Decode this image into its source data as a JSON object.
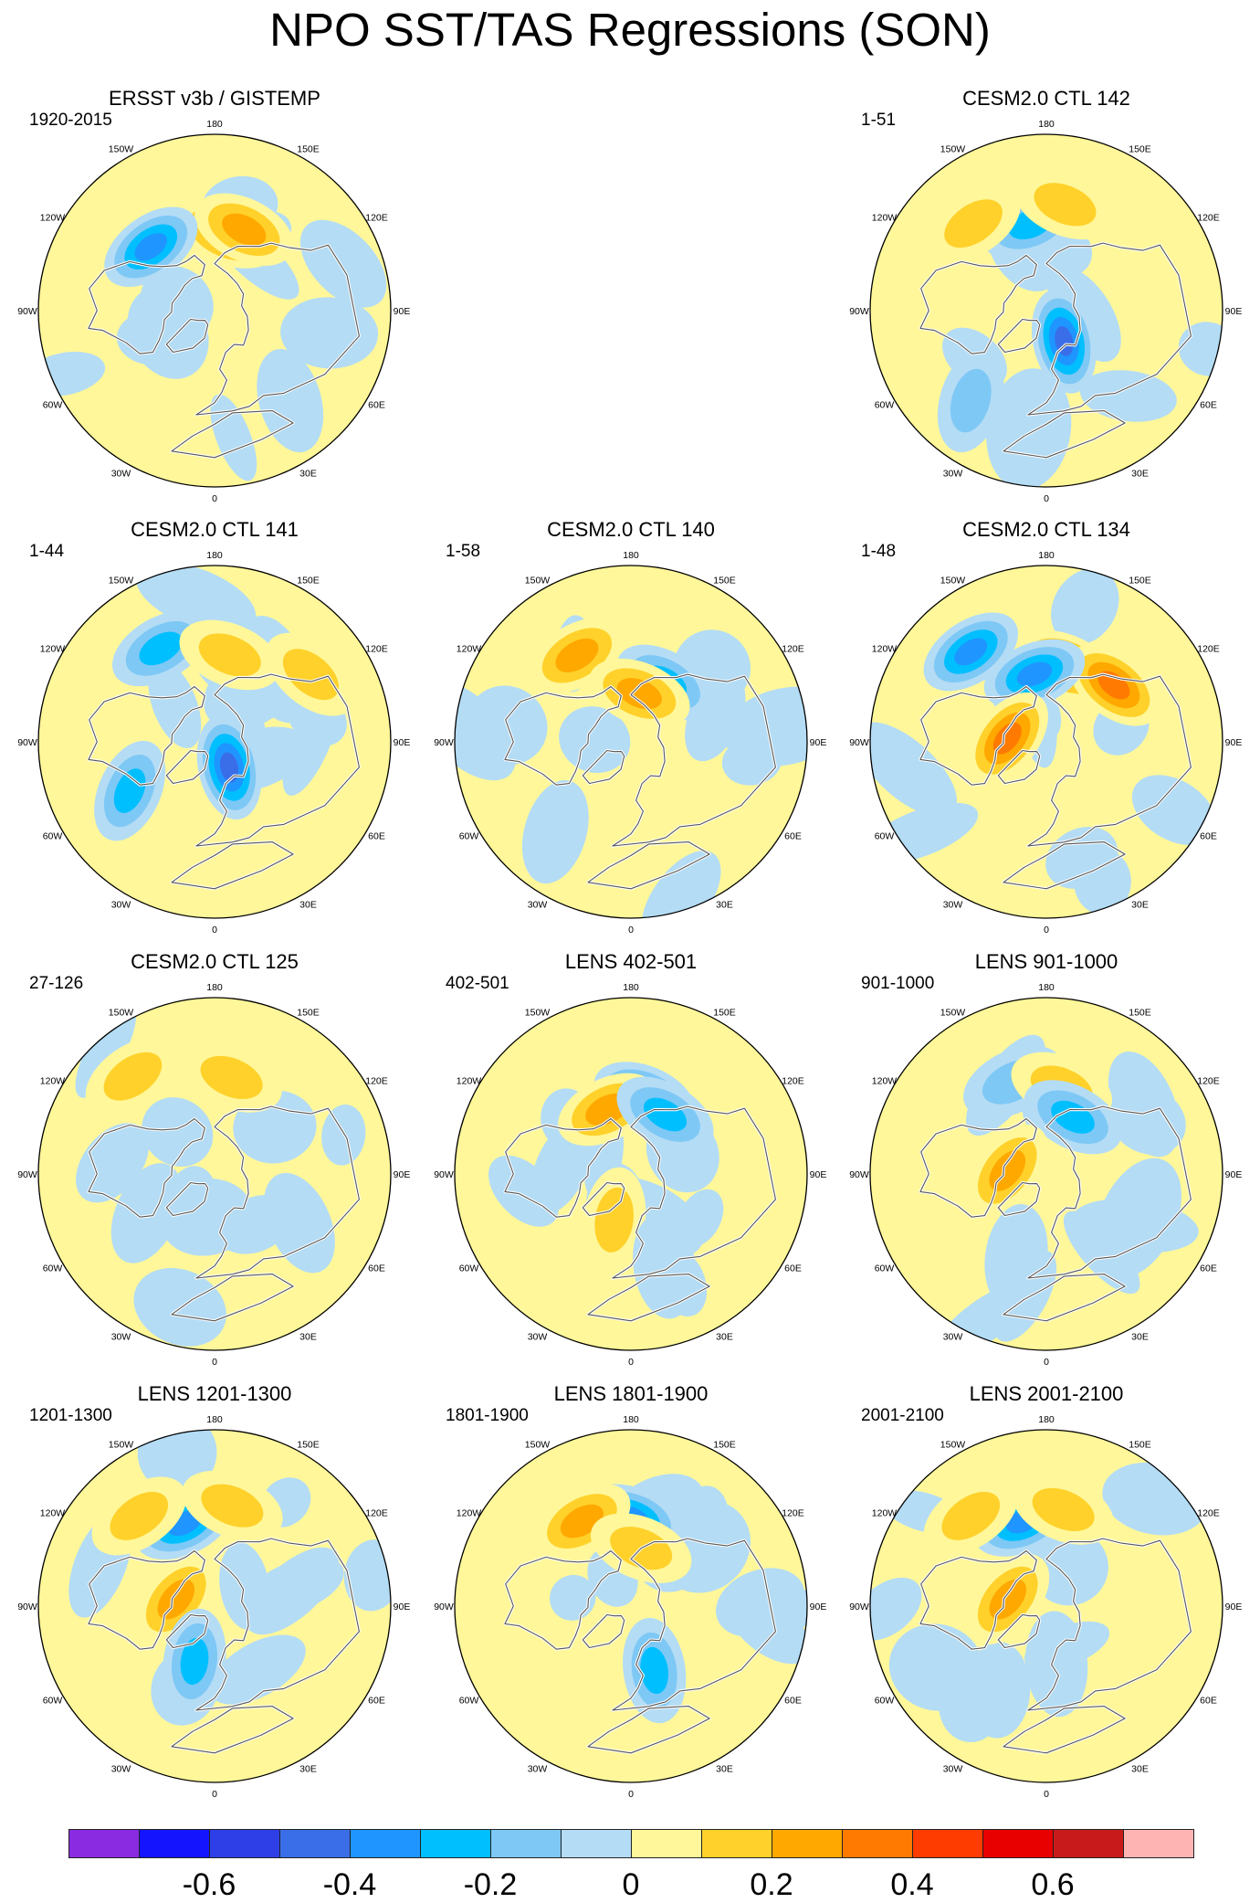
{
  "title": "NPO SST/TAS Regressions (SON)",
  "lon_labels": [
    "180",
    "150E",
    "120E",
    "90E",
    "60E",
    "30E",
    "0",
    "30W",
    "60W",
    "90W",
    "120W",
    "150W"
  ],
  "chart_data": {
    "type": "heatmap",
    "projection": "north-polar-stereographic",
    "panels": [
      {
        "title": "ERSST v3b / GISTEMP",
        "period": "1920-2015",
        "features": [
          {
            "lon": 170,
            "lat": 50,
            "value": 0.4,
            "kind": "warm"
          },
          {
            "lon": 160,
            "lat": 46,
            "value": 0.3,
            "kind": "warm"
          },
          {
            "lon": -135,
            "lat": 44,
            "value": -0.4,
            "kind": "cool"
          },
          {
            "lon": 110,
            "lat": 20,
            "value": -0.1,
            "kind": "cool"
          },
          {
            "lon": 40,
            "lat": 30,
            "value": -0.1,
            "kind": "cool"
          }
        ]
      },
      {
        "title": "CESM2.0 CTL 142",
        "period": "1-51",
        "features": [
          {
            "lon": -170,
            "lat": 45,
            "value": -0.3,
            "kind": "cool"
          },
          {
            "lon": -140,
            "lat": 32,
            "value": 0.2,
            "kind": "warm"
          },
          {
            "lon": 170,
            "lat": 35,
            "value": 0.2,
            "kind": "warm"
          },
          {
            "lon": 30,
            "lat": 72,
            "value": -0.5,
            "kind": "cool"
          },
          {
            "lon": -40,
            "lat": 30,
            "value": -0.2,
            "kind": "cool"
          }
        ]
      },
      {
        "title": "CESM2.0 CTL 141",
        "period": "1-44",
        "features": [
          {
            "lon": -150,
            "lat": 35,
            "value": -0.3,
            "kind": "cool"
          },
          {
            "lon": 170,
            "lat": 45,
            "value": 0.2,
            "kind": "warm"
          },
          {
            "lon": 125,
            "lat": 30,
            "value": 0.2,
            "kind": "warm"
          },
          {
            "lon": -60,
            "lat": 40,
            "value": -0.3,
            "kind": "cool"
          },
          {
            "lon": 30,
            "lat": 75,
            "value": -0.5,
            "kind": "cool"
          }
        ]
      },
      {
        "title": "CESM2.0 CTL 140",
        "period": "1-58",
        "features": [
          {
            "lon": -148,
            "lat": 38,
            "value": 0.3,
            "kind": "warm"
          },
          {
            "lon": 150,
            "lat": 55,
            "value": -0.3,
            "kind": "cool"
          },
          {
            "lon": 170,
            "lat": 65,
            "value": 0.3,
            "kind": "warm"
          },
          {
            "lon": -40,
            "lat": 30,
            "value": -0.1,
            "kind": "cool"
          }
        ]
      },
      {
        "title": "CESM2.0 CTL 134",
        "period": "1-48",
        "features": [
          {
            "lon": -140,
            "lat": 30,
            "value": -0.4,
            "kind": "cool"
          },
          {
            "lon": 165,
            "lat": 50,
            "value": 0.4,
            "kind": "warm"
          },
          {
            "lon": 130,
            "lat": 45,
            "value": 0.4,
            "kind": "warm"
          },
          {
            "lon": -170,
            "lat": 55,
            "value": -0.4,
            "kind": "cool"
          },
          {
            "lon": -95,
            "lat": 70,
            "value": 0.4,
            "kind": "warm"
          }
        ]
      },
      {
        "title": "CESM2.0 CTL 125",
        "period": "27-126",
        "features": [
          {
            "lon": -140,
            "lat": 25,
            "value": 0.2,
            "kind": "warm"
          },
          {
            "lon": 170,
            "lat": 40,
            "value": 0.2,
            "kind": "warm"
          },
          {
            "lon": 60,
            "lat": 40,
            "value": -0.1,
            "kind": "cool"
          },
          {
            "lon": -60,
            "lat": 50,
            "value": -0.1,
            "kind": "cool"
          }
        ]
      },
      {
        "title": "LENS 402-501",
        "period": "402-501",
        "features": [
          {
            "lon": 170,
            "lat": 50,
            "value": -0.4,
            "kind": "cool"
          },
          {
            "lon": -160,
            "lat": 55,
            "value": 0.3,
            "kind": "warm"
          },
          {
            "lon": 150,
            "lat": 55,
            "value": -0.3,
            "kind": "cool"
          },
          {
            "lon": -20,
            "lat": 65,
            "value": 0.2,
            "kind": "warm"
          },
          {
            "lon": 20,
            "lat": 40,
            "value": -0.1,
            "kind": "cool"
          }
        ]
      },
      {
        "title": "LENS 901-1000",
        "period": "901-1000",
        "features": [
          {
            "lon": -160,
            "lat": 40,
            "value": -0.2,
            "kind": "cool"
          },
          {
            "lon": 170,
            "lat": 45,
            "value": 0.2,
            "kind": "warm"
          },
          {
            "lon": 155,
            "lat": 58,
            "value": -0.3,
            "kind": "cool"
          },
          {
            "lon": -95,
            "lat": 70,
            "value": 0.3,
            "kind": "warm"
          },
          {
            "lon": -20,
            "lat": 45,
            "value": -0.1,
            "kind": "cool"
          }
        ]
      },
      {
        "title": "LENS 1201-1300",
        "period": "1201-1300",
        "features": [
          {
            "lon": -160,
            "lat": 45,
            "value": -0.4,
            "kind": "cool"
          },
          {
            "lon": 170,
            "lat": 38,
            "value": 0.2,
            "kind": "warm"
          },
          {
            "lon": -100,
            "lat": 70,
            "value": 0.3,
            "kind": "warm"
          },
          {
            "lon": -20,
            "lat": 60,
            "value": -0.3,
            "kind": "cool"
          },
          {
            "lon": -140,
            "lat": 30,
            "value": 0.2,
            "kind": "warm"
          }
        ]
      },
      {
        "title": "LENS 1801-1900",
        "period": "1801-1900",
        "features": [
          {
            "lon": 180,
            "lat": 45,
            "value": -0.4,
            "kind": "cool"
          },
          {
            "lon": -150,
            "lat": 40,
            "value": 0.3,
            "kind": "warm"
          },
          {
            "lon": 170,
            "lat": 60,
            "value": 0.2,
            "kind": "warm"
          },
          {
            "lon": 20,
            "lat": 55,
            "value": -0.3,
            "kind": "cool"
          }
        ]
      },
      {
        "title": "LENS 2001-2100",
        "period": "2001-2100",
        "features": [
          {
            "lon": -165,
            "lat": 45,
            "value": -0.4,
            "kind": "cool"
          },
          {
            "lon": -140,
            "lat": 30,
            "value": 0.2,
            "kind": "warm"
          },
          {
            "lon": 170,
            "lat": 40,
            "value": 0.2,
            "kind": "warm"
          },
          {
            "lon": -100,
            "lat": 70,
            "value": 0.3,
            "kind": "warm"
          },
          {
            "lon": 10,
            "lat": 60,
            "value": -0.1,
            "kind": "cool"
          }
        ]
      }
    ],
    "colorbar": {
      "levels": [
        -0.7,
        -0.6,
        -0.5,
        -0.4,
        -0.3,
        -0.2,
        -0.1,
        0,
        0.1,
        0.2,
        0.3,
        0.4,
        0.5,
        0.6,
        0.7
      ],
      "colors": [
        "#8a2be2",
        "#1414ff",
        "#2e3fe8",
        "#3a6ee8",
        "#1f95ff",
        "#00bfff",
        "#7ec8f5",
        "#b4dcf5",
        "#fff79a",
        "#ffd12a",
        "#ffa800",
        "#ff7a00",
        "#ff3c00",
        "#e80000",
        "#c81a1a",
        "#ffb4b4"
      ],
      "tick_labels": [
        "-0.6",
        "-0.4",
        "-0.2",
        "0",
        "0.2",
        "0.4",
        "0.6"
      ],
      "tick_values": [
        -0.6,
        -0.4,
        -0.2,
        0,
        0.2,
        0.4,
        0.6
      ]
    }
  }
}
